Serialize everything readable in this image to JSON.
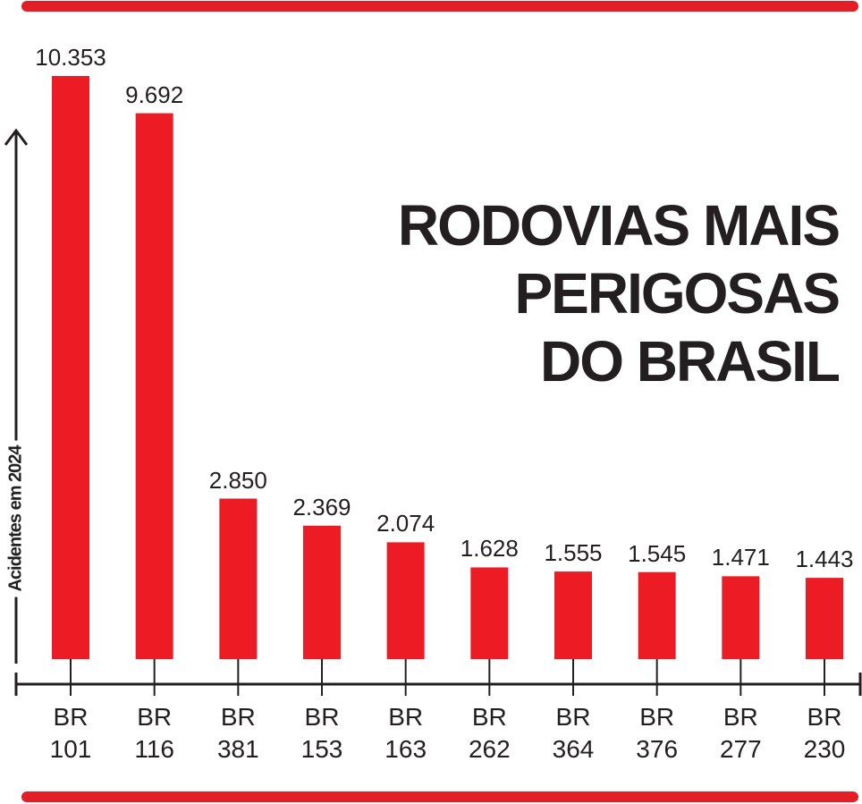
{
  "chart_data": {
    "type": "bar",
    "title": "RODOVIAS MAIS\nPERIGOSAS\nDO BRASIL",
    "y_label": "Acidentes em 2024",
    "categories": [
      "BR\n101",
      "BR\n116",
      "BR\n381",
      "BR\n153",
      "BR\n163",
      "BR\n262",
      "BR\n364",
      "BR\n376",
      "BR\n277",
      "BR\n230"
    ],
    "values": [
      10353,
      9692,
      2850,
      2369,
      2074,
      1628,
      1555,
      1545,
      1471,
      1443
    ],
    "value_labels": [
      "10.353",
      "9.692",
      "2.850",
      "2.369",
      "2.074",
      "1.628",
      "1.555",
      "1.545",
      "1.471",
      "1.443"
    ],
    "color": "#ed1c24"
  }
}
